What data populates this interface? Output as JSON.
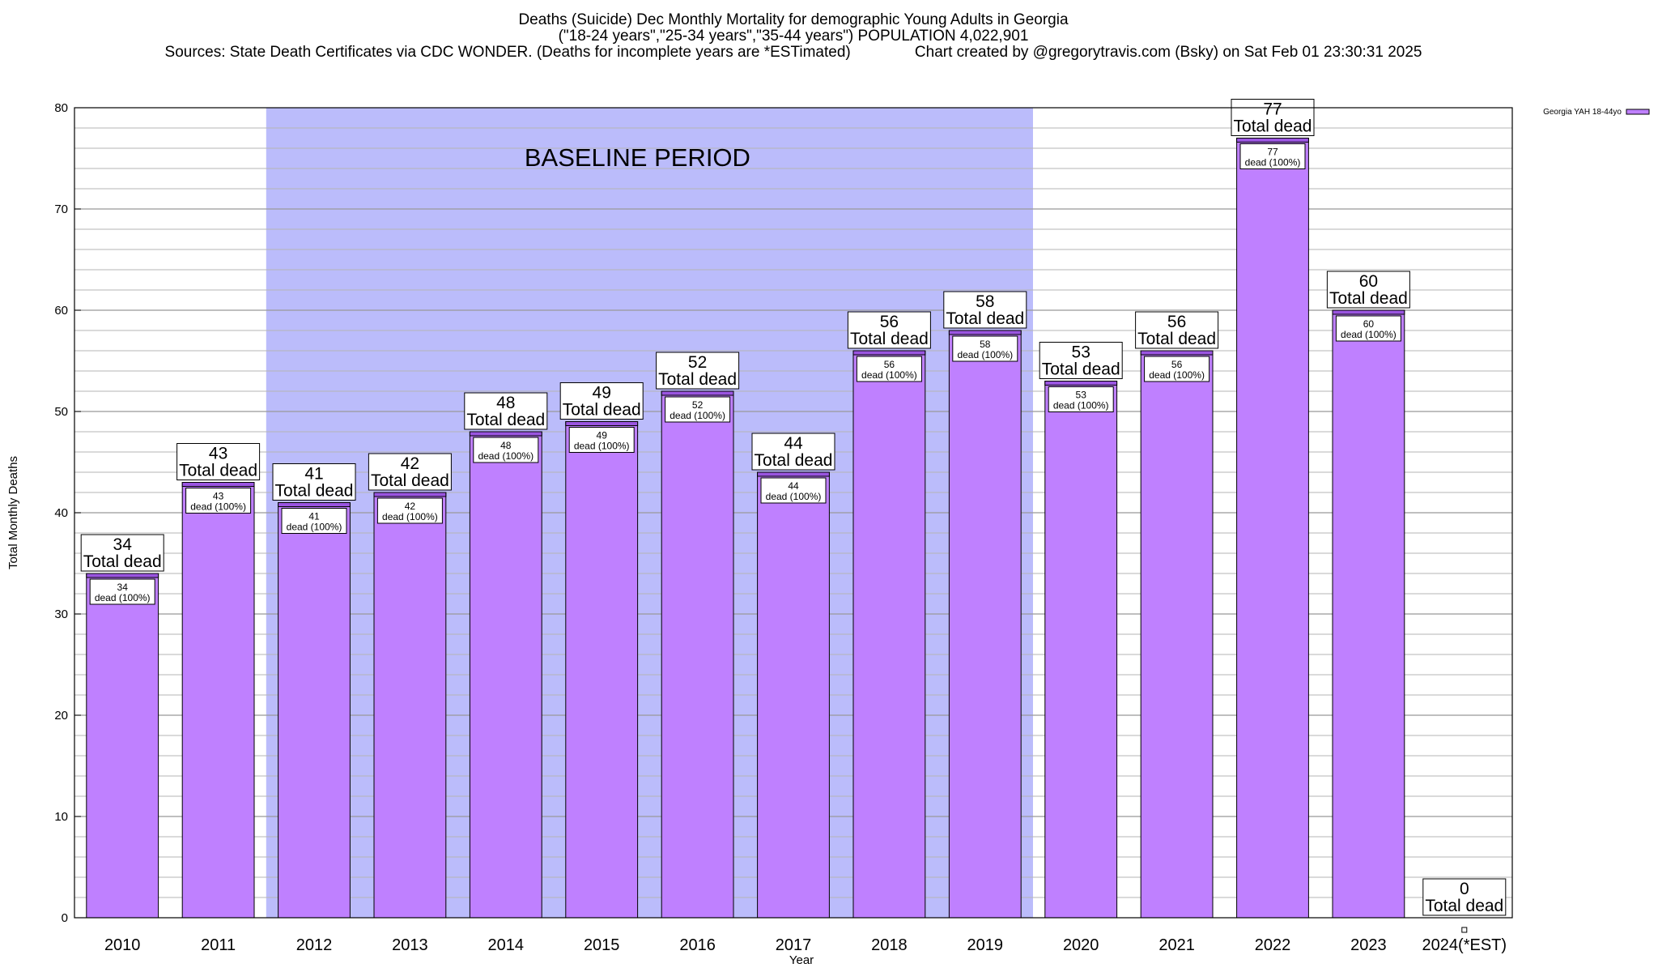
{
  "header": {
    "title": "Deaths (Suicide) Dec Monthly Mortality for demographic Young Adults in Georgia",
    "subtitle": "(\"18-24 years\",\"25-34 years\",\"35-44 years\") POPULATION 4,022,901",
    "sources": "Sources: State Death Certificates via CDC WONDER. (Deaths for incomplete years are *ESTimated)",
    "credit": "Chart created by @gregorytravis.com (Bsky) on Sat Feb 01 23:30:31 2025"
  },
  "chart_data": {
    "type": "bar",
    "categories": [
      "2010",
      "2011",
      "2012",
      "2013",
      "2014",
      "2015",
      "2016",
      "2017",
      "2018",
      "2019",
      "2020",
      "2021",
      "2022",
      "2023",
      "2024(*EST)"
    ],
    "series": [
      {
        "name": "Georgia YAH 18-44yo",
        "values": [
          34,
          43,
          41,
          42,
          48,
          49,
          52,
          44,
          56,
          58,
          53,
          56,
          77,
          60,
          0
        ]
      }
    ],
    "xlabel": "Year",
    "ylabel": "Total Monthly Deaths",
    "ylim": [
      0,
      80
    ],
    "yticks": [
      0,
      10,
      20,
      30,
      40,
      50,
      60,
      70,
      80
    ],
    "grid": true,
    "legend": "top-right",
    "total_label_suffix": "Total dead",
    "inner_label_suffix": "dead (100%)",
    "baseline": {
      "label": "BASELINE PERIOD",
      "from": "2012",
      "to": "2019"
    },
    "colors": {
      "bar": "#bf80ff",
      "bar_top": "#9a55e0",
      "baseline": "#bbbcfb",
      "grid": "#b4b4b4"
    }
  }
}
